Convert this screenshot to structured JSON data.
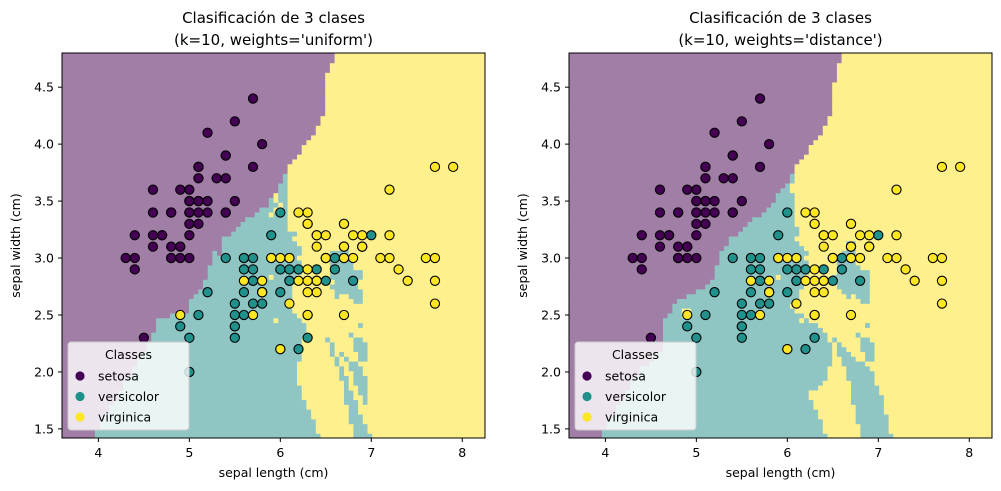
{
  "chart_data": [
    {
      "type": "scatter",
      "title_line1": "Clasificación de 3 clases",
      "title_line2": "(k=10, weights='uniform')",
      "xlabel": "sepal length (cm)",
      "ylabel": "sepal width (cm)",
      "xlim": [
        3.6,
        8.25
      ],
      "ylim": [
        1.42,
        4.8
      ],
      "xticks": [
        "4",
        "5",
        "6",
        "7",
        "8"
      ],
      "yticks": [
        "1.5",
        "2.0",
        "2.5",
        "3.0",
        "3.5",
        "4.0",
        "4.5"
      ],
      "legend_title": "Classes",
      "legend_position": "lower left",
      "background_regions": "decision boundary: purple=setosa (top-left), teal=versicolor (bottom-middle), yellow=virginica (right)"
    },
    {
      "type": "scatter",
      "title_line1": "Clasificación de 3 clases",
      "title_line2": "(k=10, weights='distance')",
      "xlabel": "sepal length (cm)",
      "ylabel": "sepal width (cm)",
      "xlim": [
        3.6,
        8.25
      ],
      "ylim": [
        1.42,
        4.8
      ],
      "xticks": [
        "4",
        "5",
        "6",
        "7",
        "8"
      ],
      "yticks": [
        "1.5",
        "2.0",
        "2.5",
        "3.0",
        "3.5",
        "4.0",
        "4.5"
      ],
      "legend_title": "Classes",
      "legend_position": "lower left",
      "background_regions": "decision boundary: purple=setosa (top-left), teal=versicolor (bottom-middle), yellow=virginica (right)"
    }
  ],
  "classes": [
    {
      "name": "setosa",
      "point_color": "#440154",
      "region_color": "#a17ea6"
    },
    {
      "name": "versicolor",
      "point_color": "#21918c",
      "region_color": "#8fc6c4"
    },
    {
      "name": "virginica",
      "point_color": "#fde725",
      "region_color": "#fdf08d"
    }
  ],
  "points": {
    "setosa": [
      [
        5.1,
        3.5
      ],
      [
        4.9,
        3.0
      ],
      [
        4.7,
        3.2
      ],
      [
        4.6,
        3.1
      ],
      [
        5.0,
        3.6
      ],
      [
        5.4,
        3.9
      ],
      [
        4.6,
        3.4
      ],
      [
        5.0,
        3.4
      ],
      [
        4.4,
        2.9
      ],
      [
        4.9,
        3.1
      ],
      [
        5.4,
        3.7
      ],
      [
        4.8,
        3.4
      ],
      [
        4.8,
        3.0
      ],
      [
        4.3,
        3.0
      ],
      [
        5.8,
        4.0
      ],
      [
        5.7,
        4.4
      ],
      [
        5.4,
        3.9
      ],
      [
        5.1,
        3.5
      ],
      [
        5.7,
        3.8
      ],
      [
        5.1,
        3.8
      ],
      [
        5.4,
        3.4
      ],
      [
        5.1,
        3.7
      ],
      [
        4.6,
        3.6
      ],
      [
        5.1,
        3.3
      ],
      [
        4.8,
        3.4
      ],
      [
        5.0,
        3.0
      ],
      [
        5.0,
        3.4
      ],
      [
        5.2,
        3.5
      ],
      [
        5.2,
        3.4
      ],
      [
        4.7,
        3.2
      ],
      [
        4.8,
        3.1
      ],
      [
        5.4,
        3.4
      ],
      [
        5.2,
        4.1
      ],
      [
        5.5,
        4.2
      ],
      [
        4.9,
        3.1
      ],
      [
        5.0,
        3.2
      ],
      [
        5.5,
        3.5
      ],
      [
        4.9,
        3.6
      ],
      [
        4.4,
        3.0
      ],
      [
        5.1,
        3.4
      ],
      [
        5.0,
        3.5
      ],
      [
        4.5,
        2.3
      ],
      [
        4.4,
        3.2
      ],
      [
        5.0,
        3.5
      ],
      [
        5.1,
        3.8
      ],
      [
        4.8,
        3.0
      ],
      [
        5.1,
        3.8
      ],
      [
        4.6,
        3.2
      ],
      [
        5.3,
        3.7
      ],
      [
        5.0,
        3.3
      ]
    ],
    "versicolor": [
      [
        7.0,
        3.2
      ],
      [
        6.4,
        3.2
      ],
      [
        6.9,
        3.1
      ],
      [
        5.5,
        2.3
      ],
      [
        6.5,
        2.8
      ],
      [
        5.7,
        2.8
      ],
      [
        6.3,
        3.3
      ],
      [
        4.9,
        2.4
      ],
      [
        6.6,
        2.9
      ],
      [
        5.2,
        2.7
      ],
      [
        5.0,
        2.0
      ],
      [
        5.9,
        3.0
      ],
      [
        6.0,
        2.2
      ],
      [
        6.1,
        2.9
      ],
      [
        5.6,
        2.9
      ],
      [
        6.7,
        3.1
      ],
      [
        5.6,
        3.0
      ],
      [
        5.8,
        2.7
      ],
      [
        6.2,
        2.2
      ],
      [
        5.6,
        2.5
      ],
      [
        5.9,
        3.2
      ],
      [
        6.1,
        2.8
      ],
      [
        6.3,
        2.5
      ],
      [
        6.1,
        2.8
      ],
      [
        6.4,
        2.9
      ],
      [
        6.6,
        3.0
      ],
      [
        6.8,
        2.8
      ],
      [
        6.7,
        3.0
      ],
      [
        6.0,
        2.9
      ],
      [
        5.7,
        2.6
      ],
      [
        5.5,
        2.4
      ],
      [
        5.5,
        2.4
      ],
      [
        5.8,
        2.7
      ],
      [
        6.0,
        2.7
      ],
      [
        5.4,
        3.0
      ],
      [
        6.0,
        3.4
      ],
      [
        6.7,
        3.1
      ],
      [
        6.3,
        2.3
      ],
      [
        5.6,
        3.0
      ],
      [
        5.5,
        2.5
      ],
      [
        5.5,
        2.6
      ],
      [
        6.1,
        3.0
      ],
      [
        5.8,
        2.6
      ],
      [
        5.0,
        2.3
      ],
      [
        5.6,
        2.7
      ],
      [
        5.7,
        3.0
      ],
      [
        5.7,
        2.9
      ],
      [
        6.2,
        2.9
      ],
      [
        5.1,
        2.5
      ],
      [
        5.7,
        2.8
      ]
    ],
    "virginica": [
      [
        6.3,
        3.3
      ],
      [
        5.8,
        2.7
      ],
      [
        7.1,
        3.0
      ],
      [
        6.3,
        2.9
      ],
      [
        6.5,
        3.0
      ],
      [
        7.6,
        3.0
      ],
      [
        4.9,
        2.5
      ],
      [
        7.3,
        2.9
      ],
      [
        6.7,
        2.5
      ],
      [
        7.2,
        3.6
      ],
      [
        6.5,
        3.2
      ],
      [
        6.4,
        2.7
      ],
      [
        6.8,
        3.0
      ],
      [
        5.7,
        2.5
      ],
      [
        5.8,
        2.8
      ],
      [
        6.4,
        3.2
      ],
      [
        6.5,
        3.0
      ],
      [
        7.7,
        3.8
      ],
      [
        7.7,
        2.6
      ],
      [
        6.0,
        2.2
      ],
      [
        6.9,
        3.2
      ],
      [
        5.6,
        2.8
      ],
      [
        7.7,
        2.8
      ],
      [
        6.3,
        2.7
      ],
      [
        6.7,
        3.3
      ],
      [
        7.2,
        3.2
      ],
      [
        6.2,
        2.8
      ],
      [
        6.1,
        3.0
      ],
      [
        6.4,
        2.8
      ],
      [
        7.2,
        3.0
      ],
      [
        7.4,
        2.8
      ],
      [
        7.9,
        3.8
      ],
      [
        6.4,
        2.8
      ],
      [
        6.3,
        2.8
      ],
      [
        6.1,
        2.6
      ],
      [
        7.7,
        3.0
      ],
      [
        6.3,
        3.4
      ],
      [
        6.4,
        3.1
      ],
      [
        6.0,
        3.0
      ],
      [
        6.9,
        3.1
      ],
      [
        6.7,
        3.1
      ],
      [
        6.9,
        3.1
      ],
      [
        5.8,
        2.7
      ],
      [
        6.8,
        3.2
      ],
      [
        6.7,
        3.3
      ],
      [
        6.7,
        3.0
      ],
      [
        6.3,
        2.5
      ],
      [
        6.5,
        3.0
      ],
      [
        6.2,
        3.4
      ],
      [
        5.9,
        3.0
      ]
    ]
  }
}
